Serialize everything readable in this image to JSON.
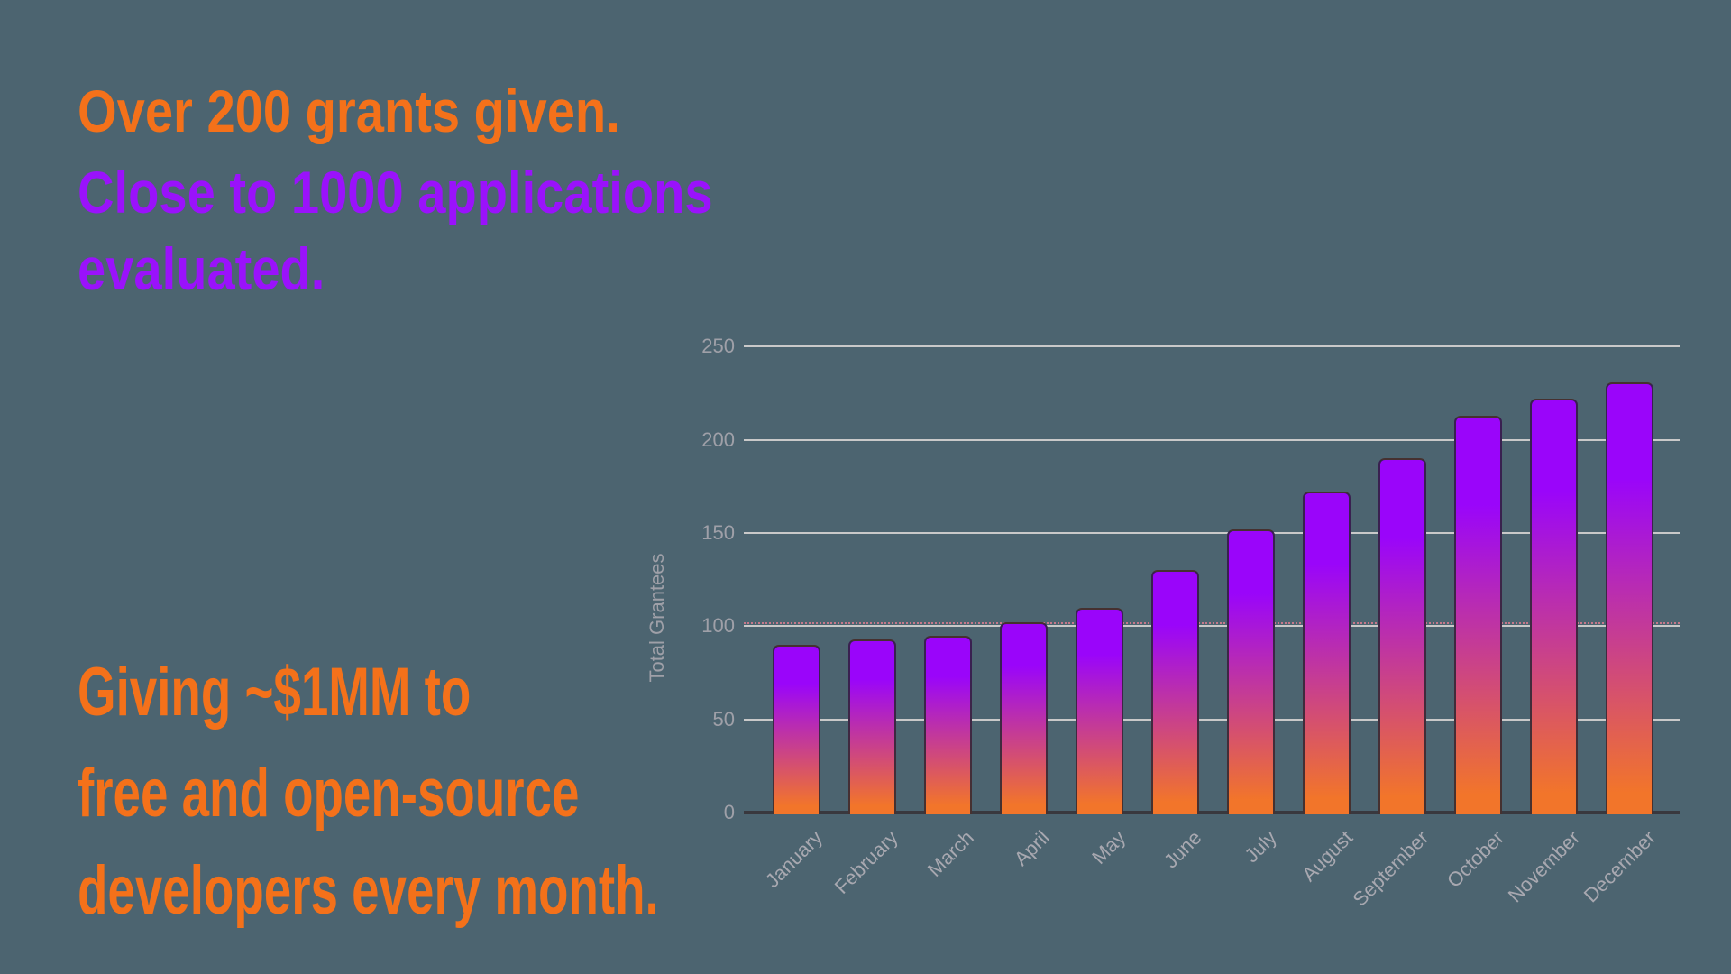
{
  "headline": {
    "line1": "Over 200 grants given.",
    "line2a": "Close to 1000 applications",
    "line2b": "evaluated."
  },
  "footer_text": {
    "line1": "Giving ~$1MM to",
    "line2": "free and open-source",
    "line3": "developers every month."
  },
  "colors": {
    "background": "#4c6470",
    "orange_text": "#f4711a",
    "purple_text": "#9a12fb",
    "bar_gradient_top": "#9a05fa",
    "bar_gradient_bottom": "#f2752a",
    "bar_border": "rgba(40,38,50,0.85)",
    "gridline": "#c9c9c9",
    "axis_line": "#39383e",
    "tick_text": "#9fa0a8",
    "month_text": "#a8a8b0",
    "reference_line_pink": "#ee8095"
  },
  "chart_data": {
    "type": "bar",
    "title": "",
    "xlabel": "",
    "ylabel": "Total Grantees",
    "categories": [
      "January",
      "February",
      "March",
      "April",
      "May",
      "June",
      "July",
      "August",
      "September",
      "October",
      "November",
      "December"
    ],
    "values": [
      90,
      93,
      95,
      102,
      110,
      130,
      152,
      172,
      190,
      213,
      222,
      231
    ],
    "yticks": [
      0,
      50,
      100,
      150,
      200,
      250
    ],
    "ylim": [
      0,
      250
    ],
    "grid": true,
    "legend": "none",
    "reference_line": 100,
    "bar_style": "vertical gradient purple to orange per bar"
  }
}
